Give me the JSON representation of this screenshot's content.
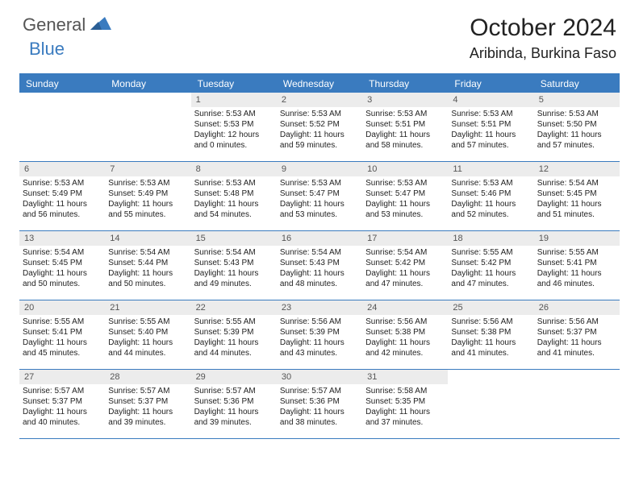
{
  "logo": {
    "general": "General",
    "blue": "Blue"
  },
  "title": "October 2024",
  "location": "Aribinda, Burkina Faso",
  "dayNames": [
    "Sunday",
    "Monday",
    "Tuesday",
    "Wednesday",
    "Thursday",
    "Friday",
    "Saturday"
  ],
  "colors": {
    "accent": "#3a7bbf",
    "dayNumBg": "#ececec",
    "text": "#222222"
  },
  "leadingBlanks": 2,
  "days": [
    {
      "n": 1,
      "sunrise": "5:53 AM",
      "sunset": "5:53 PM",
      "daylight": "12 hours and 0 minutes."
    },
    {
      "n": 2,
      "sunrise": "5:53 AM",
      "sunset": "5:52 PM",
      "daylight": "11 hours and 59 minutes."
    },
    {
      "n": 3,
      "sunrise": "5:53 AM",
      "sunset": "5:51 PM",
      "daylight": "11 hours and 58 minutes."
    },
    {
      "n": 4,
      "sunrise": "5:53 AM",
      "sunset": "5:51 PM",
      "daylight": "11 hours and 57 minutes."
    },
    {
      "n": 5,
      "sunrise": "5:53 AM",
      "sunset": "5:50 PM",
      "daylight": "11 hours and 57 minutes."
    },
    {
      "n": 6,
      "sunrise": "5:53 AM",
      "sunset": "5:49 PM",
      "daylight": "11 hours and 56 minutes."
    },
    {
      "n": 7,
      "sunrise": "5:53 AM",
      "sunset": "5:49 PM",
      "daylight": "11 hours and 55 minutes."
    },
    {
      "n": 8,
      "sunrise": "5:53 AM",
      "sunset": "5:48 PM",
      "daylight": "11 hours and 54 minutes."
    },
    {
      "n": 9,
      "sunrise": "5:53 AM",
      "sunset": "5:47 PM",
      "daylight": "11 hours and 53 minutes."
    },
    {
      "n": 10,
      "sunrise": "5:53 AM",
      "sunset": "5:47 PM",
      "daylight": "11 hours and 53 minutes."
    },
    {
      "n": 11,
      "sunrise": "5:53 AM",
      "sunset": "5:46 PM",
      "daylight": "11 hours and 52 minutes."
    },
    {
      "n": 12,
      "sunrise": "5:54 AM",
      "sunset": "5:45 PM",
      "daylight": "11 hours and 51 minutes."
    },
    {
      "n": 13,
      "sunrise": "5:54 AM",
      "sunset": "5:45 PM",
      "daylight": "11 hours and 50 minutes."
    },
    {
      "n": 14,
      "sunrise": "5:54 AM",
      "sunset": "5:44 PM",
      "daylight": "11 hours and 50 minutes."
    },
    {
      "n": 15,
      "sunrise": "5:54 AM",
      "sunset": "5:43 PM",
      "daylight": "11 hours and 49 minutes."
    },
    {
      "n": 16,
      "sunrise": "5:54 AM",
      "sunset": "5:43 PM",
      "daylight": "11 hours and 48 minutes."
    },
    {
      "n": 17,
      "sunrise": "5:54 AM",
      "sunset": "5:42 PM",
      "daylight": "11 hours and 47 minutes."
    },
    {
      "n": 18,
      "sunrise": "5:55 AM",
      "sunset": "5:42 PM",
      "daylight": "11 hours and 47 minutes."
    },
    {
      "n": 19,
      "sunrise": "5:55 AM",
      "sunset": "5:41 PM",
      "daylight": "11 hours and 46 minutes."
    },
    {
      "n": 20,
      "sunrise": "5:55 AM",
      "sunset": "5:41 PM",
      "daylight": "11 hours and 45 minutes."
    },
    {
      "n": 21,
      "sunrise": "5:55 AM",
      "sunset": "5:40 PM",
      "daylight": "11 hours and 44 minutes."
    },
    {
      "n": 22,
      "sunrise": "5:55 AM",
      "sunset": "5:39 PM",
      "daylight": "11 hours and 44 minutes."
    },
    {
      "n": 23,
      "sunrise": "5:56 AM",
      "sunset": "5:39 PM",
      "daylight": "11 hours and 43 minutes."
    },
    {
      "n": 24,
      "sunrise": "5:56 AM",
      "sunset": "5:38 PM",
      "daylight": "11 hours and 42 minutes."
    },
    {
      "n": 25,
      "sunrise": "5:56 AM",
      "sunset": "5:38 PM",
      "daylight": "11 hours and 41 minutes."
    },
    {
      "n": 26,
      "sunrise": "5:56 AM",
      "sunset": "5:37 PM",
      "daylight": "11 hours and 41 minutes."
    },
    {
      "n": 27,
      "sunrise": "5:57 AM",
      "sunset": "5:37 PM",
      "daylight": "11 hours and 40 minutes."
    },
    {
      "n": 28,
      "sunrise": "5:57 AM",
      "sunset": "5:37 PM",
      "daylight": "11 hours and 39 minutes."
    },
    {
      "n": 29,
      "sunrise": "5:57 AM",
      "sunset": "5:36 PM",
      "daylight": "11 hours and 39 minutes."
    },
    {
      "n": 30,
      "sunrise": "5:57 AM",
      "sunset": "5:36 PM",
      "daylight": "11 hours and 38 minutes."
    },
    {
      "n": 31,
      "sunrise": "5:58 AM",
      "sunset": "5:35 PM",
      "daylight": "11 hours and 37 minutes."
    }
  ],
  "labels": {
    "sunrise": "Sunrise:",
    "sunset": "Sunset:",
    "daylight": "Daylight:"
  }
}
